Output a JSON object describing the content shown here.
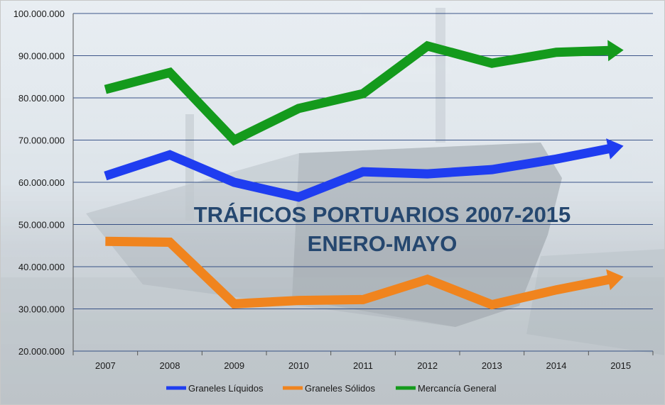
{
  "chart_data": {
    "type": "line",
    "title": "TRÁFICOS PORTUARIOS 2007-2015",
    "subtitle": "ENERO-MAYO",
    "xlabel": "",
    "ylabel": "",
    "categories": [
      "2007",
      "2008",
      "2009",
      "2010",
      "2011",
      "2012",
      "2013",
      "2014",
      "2015"
    ],
    "ylim": [
      20000000,
      100000000
    ],
    "yticks": [
      20000000,
      30000000,
      40000000,
      50000000,
      60000000,
      70000000,
      80000000,
      90000000,
      100000000
    ],
    "ytick_labels": [
      "20.000.000",
      "30.000.000",
      "40.000.000",
      "50.000.000",
      "60.000.000",
      "70.000.000",
      "80.000.000",
      "90.000.000",
      "100.000.000"
    ],
    "grid": true,
    "legend_position": "bottom",
    "series": [
      {
        "name": "Graneles Líquidos",
        "color": "#1f3df0",
        "values": [
          61500000,
          66500000,
          60000000,
          56500000,
          62500000,
          62000000,
          63000000,
          65500000,
          68500000
        ]
      },
      {
        "name": "Graneles Sólidos",
        "color": "#f0841e",
        "values": [
          46000000,
          45800000,
          31200000,
          32000000,
          32200000,
          37000000,
          31000000,
          34500000,
          37500000
        ]
      },
      {
        "name": "Mercancía General",
        "color": "#149a1c",
        "values": [
          82000000,
          86000000,
          70000000,
          77500000,
          81000000,
          92300000,
          88200000,
          90800000,
          91300000
        ]
      }
    ]
  }
}
